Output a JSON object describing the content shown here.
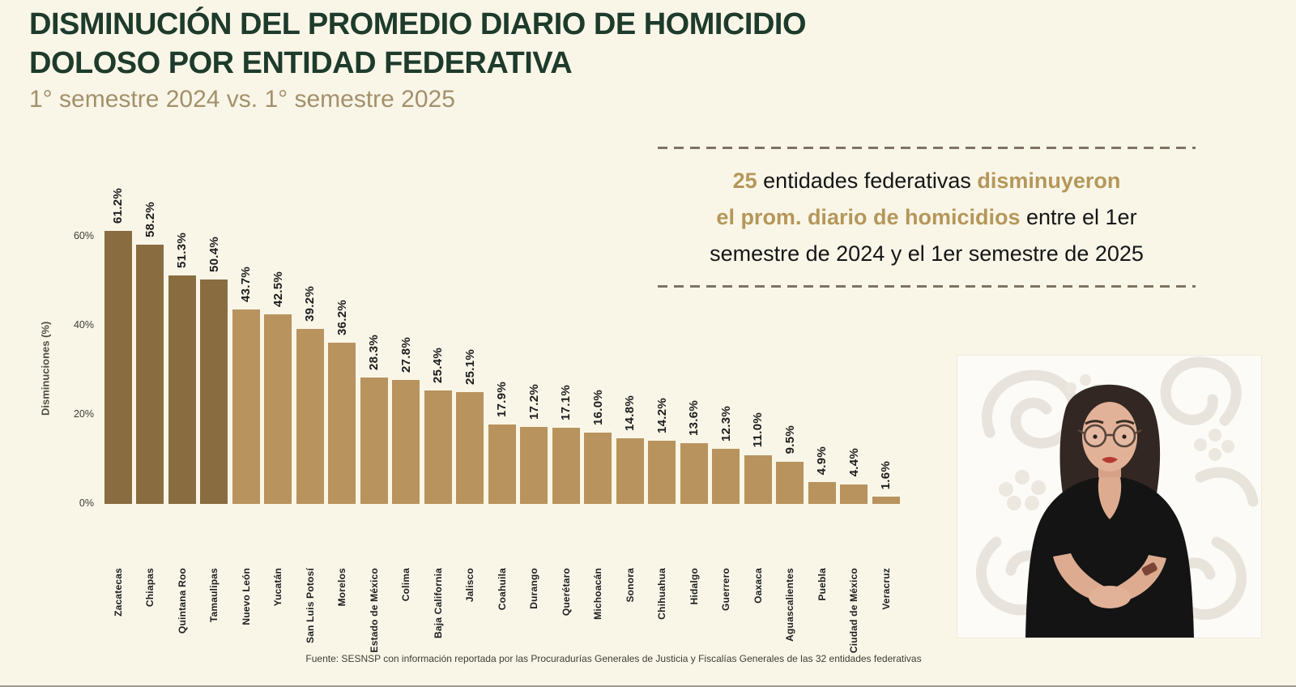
{
  "page": {
    "title_line1": "DISMINUCIÓN DEL PROMEDIO DIARIO DE HOMICIDIO",
    "title_line2": "DOLOSO POR ENTIDAD FEDERATIVA",
    "subtitle": "1° semestre 2024 vs. 1° semestre 2025",
    "footer": "Fuente: SESNSP con información reportada por las Procuradurías Generales de Justicia y Fiscalías Generales de las 32 entidades federativas"
  },
  "infobox": {
    "lines": [
      [
        {
          "text": "25",
          "style": "gold"
        },
        {
          "text": " entidades federativas ",
          "style": "dark"
        },
        {
          "text": "disminuyeron",
          "style": "gold"
        }
      ],
      [
        {
          "text": "el prom. diario de homicidios",
          "style": "gold"
        },
        {
          "text": " entre el 1er",
          "style": "dark"
        }
      ],
      [
        {
          "text": "semestre de 2024 y el 1er semestre de 2025",
          "style": "dark"
        }
      ]
    ]
  },
  "chart_data": {
    "type": "bar",
    "title": "Disminución del promedio diario de homicidio doloso por entidad federativa",
    "subtitle": "1° semestre 2024 vs. 1° semestre 2025",
    "xlabel": "",
    "ylabel": "Disminuciones (%)",
    "ylim": [
      0,
      65
    ],
    "grid": false,
    "y_ticks": [
      "60%",
      "40%",
      "20%",
      "0%"
    ],
    "categories": [
      "Zacatecas",
      "Chiapas",
      "Quintana Roo",
      "Tamaulipas",
      "Nuevo León",
      "Yucatán",
      "San Luis Potosí",
      "Morelos",
      "Estado de México",
      "Colima",
      "Baja California",
      "Jalisco",
      "Coahuila",
      "Durango",
      "Querétaro",
      "Michoacán",
      "Sonora",
      "Chihuahua",
      "Hidalgo",
      "Guerrero",
      "Oaxaca",
      "Aguascalientes",
      "Puebla",
      "Ciudad de México",
      "Veracruz"
    ],
    "values": [
      61.2,
      58.2,
      51.3,
      50.4,
      43.7,
      42.5,
      39.2,
      36.2,
      28.3,
      27.8,
      25.4,
      25.1,
      17.9,
      17.2,
      17.1,
      16.0,
      14.8,
      14.2,
      13.6,
      12.3,
      11.0,
      9.5,
      4.9,
      4.4,
      1.6
    ],
    "value_label_suffix": "%",
    "dark_bar_count": 4,
    "colors": {
      "bar_dark": "#8a6c41",
      "bar_light": "#b8935e"
    }
  },
  "colors": {
    "background": "#f9f6e8",
    "title_green": "#1e3b2b",
    "subtitle_tan": "#a3906b",
    "infobox_gold": "#b5975a",
    "infobox_dark": "#161616",
    "dash": "#7e7464"
  }
}
